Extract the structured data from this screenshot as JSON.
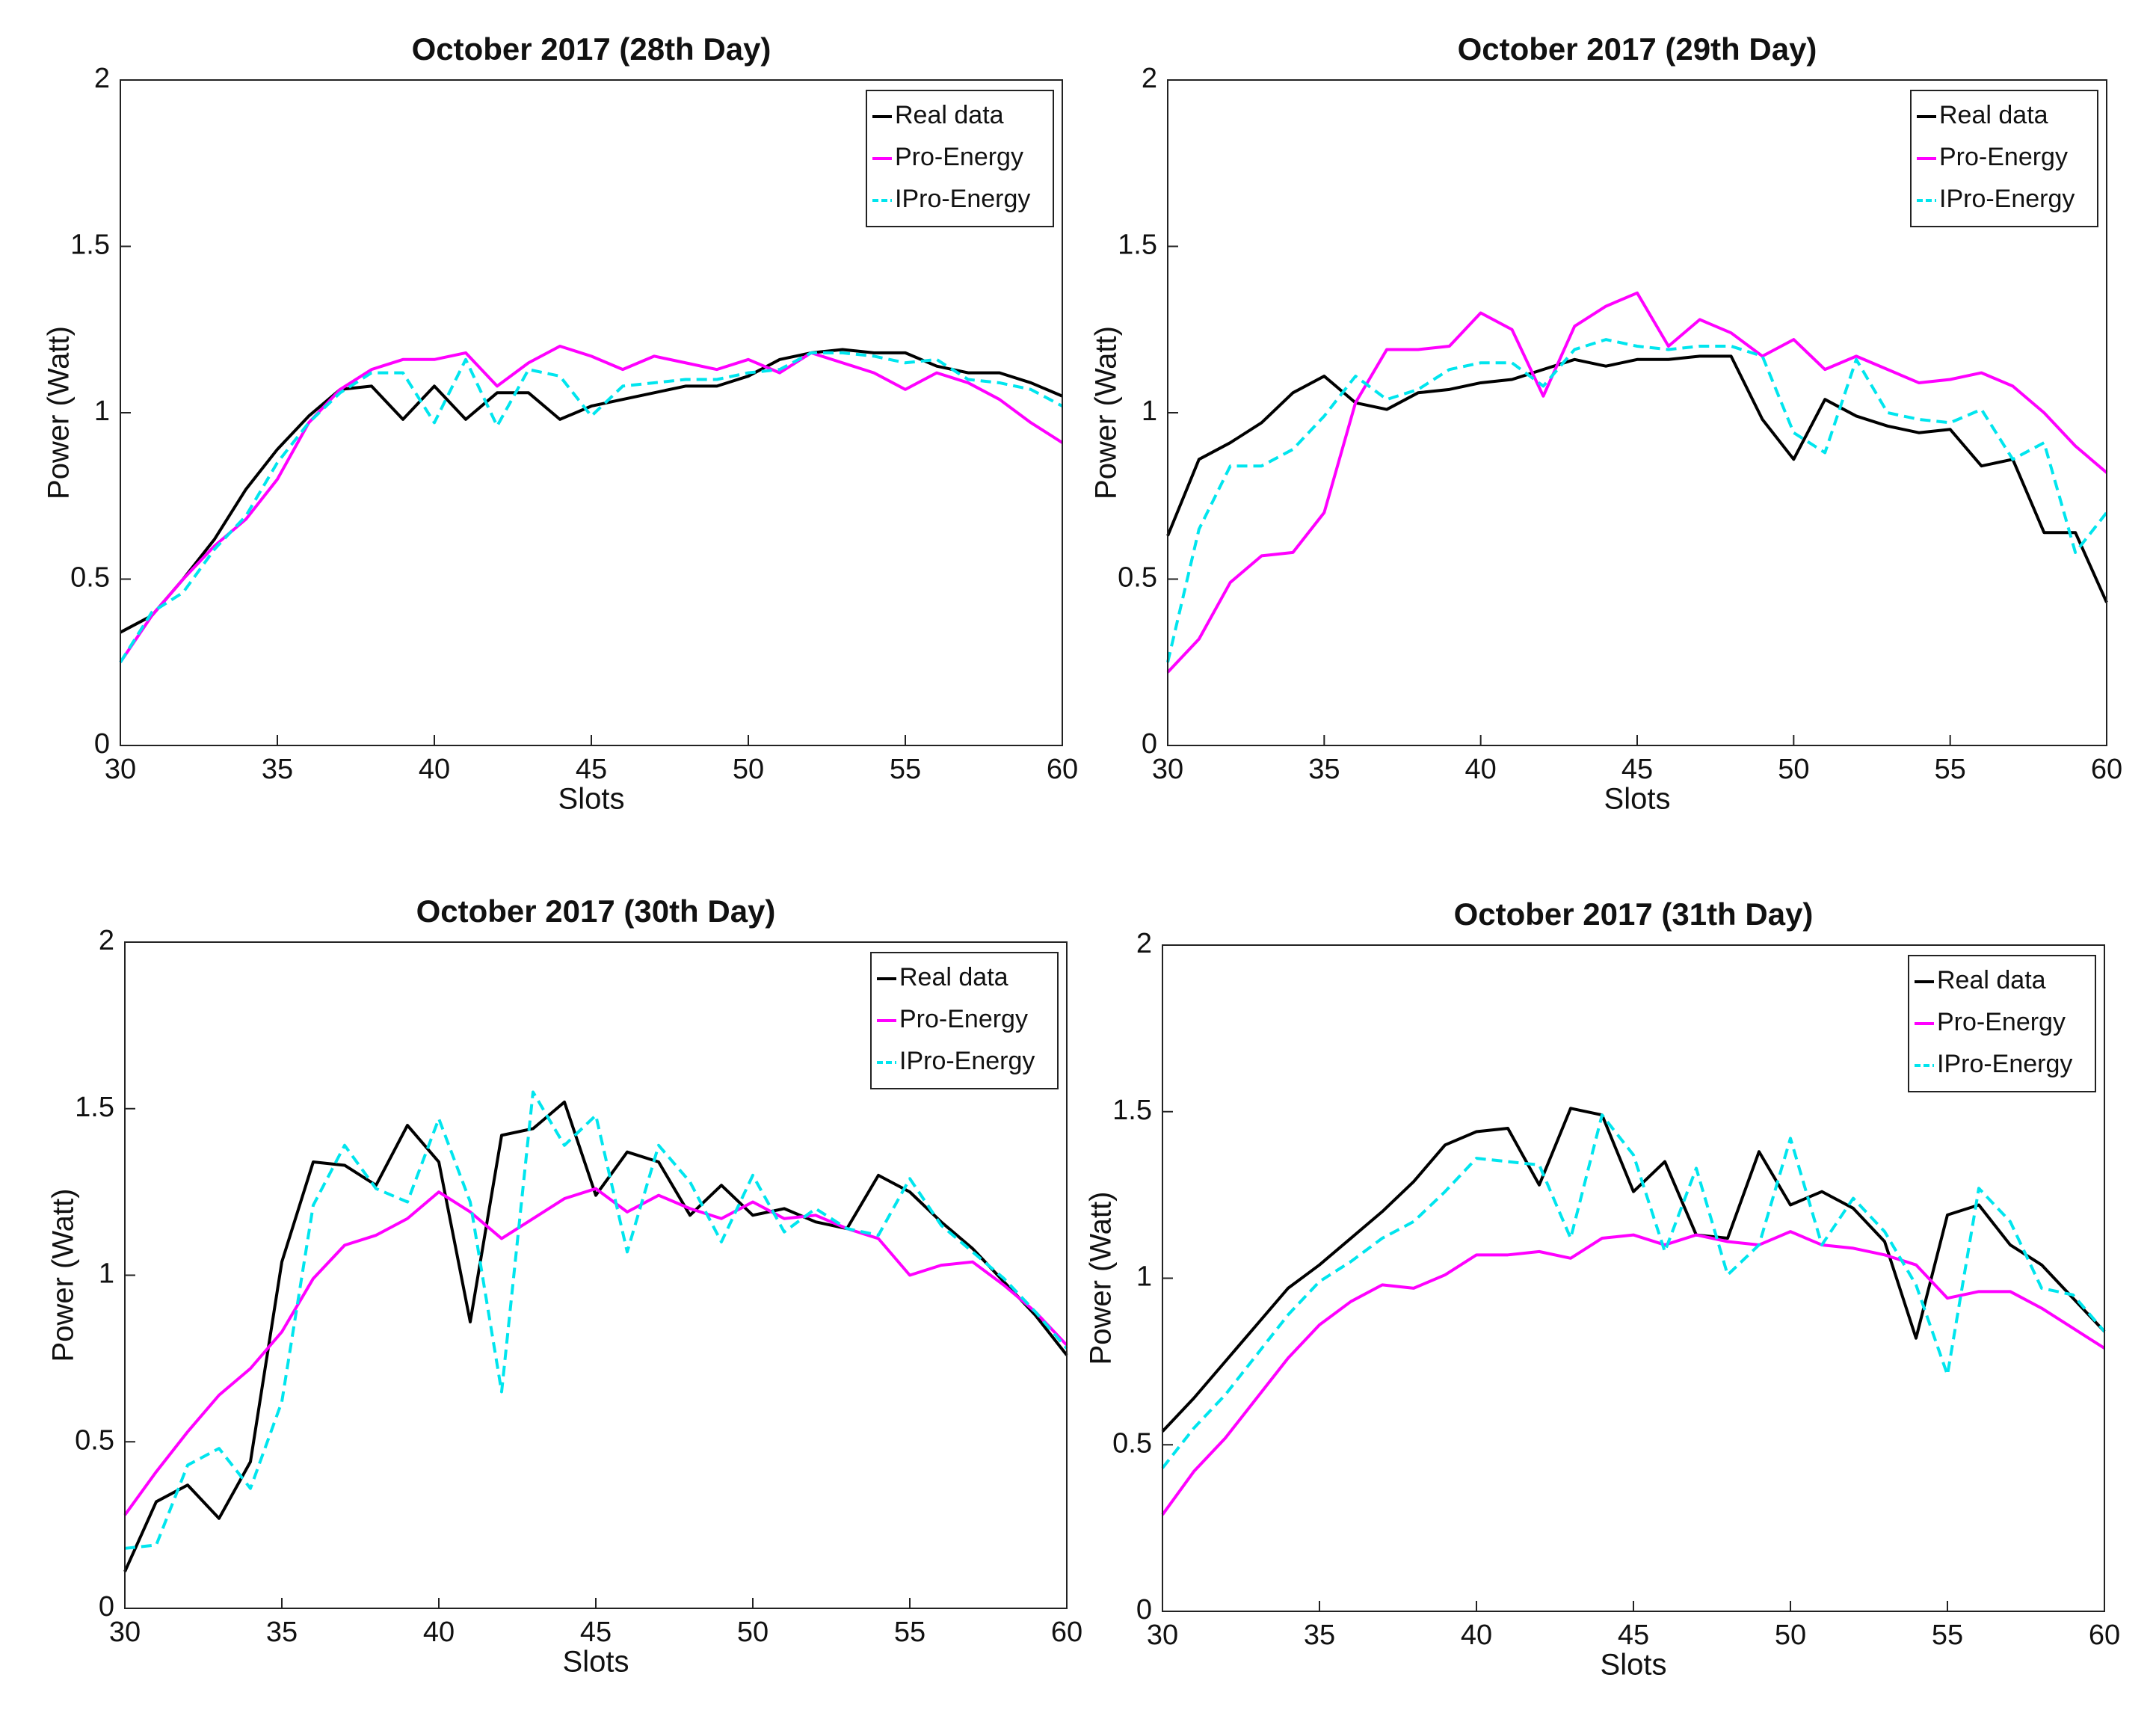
{
  "chart_data": [
    {
      "type": "line",
      "title": "October 2017 (28th Day)",
      "xlabel": "Slots",
      "ylabel": "Power (Watt)",
      "x": [
        30,
        31,
        32,
        33,
        34,
        35,
        36,
        37,
        38,
        39,
        40,
        41,
        42,
        43,
        44,
        45,
        46,
        47,
        48,
        49,
        50,
        51,
        52,
        53,
        54,
        55,
        56,
        57,
        58,
        59,
        60
      ],
      "xlim": [
        30,
        60
      ],
      "xticks": [
        30,
        35,
        40,
        45,
        50,
        55,
        60
      ],
      "ylim": [
        0,
        2
      ],
      "yticks": [
        0,
        0.5,
        1,
        1.5,
        2
      ],
      "grid": false,
      "legend": "upper right",
      "series": [
        {
          "name": "Real data",
          "color": "#000000",
          "linestyle": "solid",
          "values": [
            0.34,
            0.39,
            0.5,
            0.62,
            0.77,
            0.89,
            0.99,
            1.07,
            1.08,
            0.98,
            1.08,
            0.98,
            1.06,
            1.06,
            0.98,
            1.02,
            1.04,
            1.06,
            1.08,
            1.08,
            1.11,
            1.16,
            1.18,
            1.19,
            1.18,
            1.18,
            1.14,
            1.12,
            1.12,
            1.09,
            1.05
          ]
        },
        {
          "name": "Pro-Energy",
          "color": "#ff00ff",
          "linestyle": "solid",
          "values": [
            0.25,
            0.39,
            0.5,
            0.6,
            0.68,
            0.8,
            0.97,
            1.07,
            1.13,
            1.16,
            1.16,
            1.18,
            1.08,
            1.15,
            1.2,
            1.17,
            1.13,
            1.17,
            1.15,
            1.13,
            1.16,
            1.12,
            1.18,
            1.15,
            1.12,
            1.07,
            1.12,
            1.09,
            1.04,
            0.97,
            0.91
          ]
        },
        {
          "name": "IPro-Energy",
          "color": "#00e5ee",
          "linestyle": "dashed",
          "values": [
            0.25,
            0.4,
            0.46,
            0.59,
            0.69,
            0.85,
            0.97,
            1.06,
            1.12,
            1.12,
            0.97,
            1.16,
            0.96,
            1.13,
            1.11,
            0.99,
            1.08,
            1.09,
            1.1,
            1.1,
            1.12,
            1.13,
            1.18,
            1.18,
            1.17,
            1.15,
            1.16,
            1.1,
            1.09,
            1.07,
            1.02
          ]
        }
      ]
    },
    {
      "type": "line",
      "title": "October 2017 (29th Day)",
      "xlabel": "Slots",
      "ylabel": "Power (Watt)",
      "x": [
        30,
        31,
        32,
        33,
        34,
        35,
        36,
        37,
        38,
        39,
        40,
        41,
        42,
        43,
        44,
        45,
        46,
        47,
        48,
        49,
        50,
        51,
        52,
        53,
        54,
        55,
        56,
        57,
        58,
        59,
        60
      ],
      "xlim": [
        30,
        60
      ],
      "xticks": [
        30,
        35,
        40,
        45,
        50,
        55,
        60
      ],
      "ylim": [
        0,
        2
      ],
      "yticks": [
        0,
        0.5,
        1,
        1.5,
        2
      ],
      "grid": false,
      "legend": "upper right",
      "series": [
        {
          "name": "Real data",
          "color": "#000000",
          "linestyle": "solid",
          "values": [
            0.63,
            0.86,
            0.91,
            0.97,
            1.06,
            1.11,
            1.03,
            1.01,
            1.06,
            1.07,
            1.09,
            1.1,
            1.13,
            1.16,
            1.14,
            1.16,
            1.16,
            1.17,
            1.17,
            0.98,
            0.86,
            1.04,
            0.99,
            0.96,
            0.94,
            0.95,
            0.84,
            0.86,
            0.64,
            0.64,
            0.43
          ]
        },
        {
          "name": "Pro-Energy",
          "color": "#ff00ff",
          "linestyle": "solid",
          "values": [
            0.22,
            0.32,
            0.49,
            0.57,
            0.58,
            0.7,
            1.03,
            1.19,
            1.19,
            1.2,
            1.3,
            1.25,
            1.05,
            1.26,
            1.32,
            1.36,
            1.2,
            1.28,
            1.24,
            1.17,
            1.22,
            1.13,
            1.17,
            1.13,
            1.09,
            1.1,
            1.12,
            1.08,
            1.0,
            0.9,
            0.82
          ]
        },
        {
          "name": "IPro-Energy",
          "color": "#00e5ee",
          "linestyle": "dashed",
          "values": [
            0.25,
            0.65,
            0.84,
            0.84,
            0.89,
            0.99,
            1.11,
            1.04,
            1.07,
            1.13,
            1.15,
            1.15,
            1.08,
            1.19,
            1.22,
            1.2,
            1.19,
            1.2,
            1.2,
            1.17,
            0.94,
            0.88,
            1.16,
            1.0,
            0.98,
            0.97,
            1.01,
            0.86,
            0.91,
            0.58,
            0.7
          ]
        }
      ]
    },
    {
      "type": "line",
      "title": "October 2017 (30th Day)",
      "xlabel": "Slots",
      "ylabel": "Power (Watt)",
      "x": [
        30,
        31,
        32,
        33,
        34,
        35,
        36,
        37,
        38,
        39,
        40,
        41,
        42,
        43,
        44,
        45,
        46,
        47,
        48,
        49,
        50,
        51,
        52,
        53,
        54,
        55,
        56,
        57,
        58,
        59,
        60
      ],
      "xlim": [
        30,
        60
      ],
      "xticks": [
        30,
        35,
        40,
        45,
        50,
        55,
        60
      ],
      "ylim": [
        0,
        2
      ],
      "yticks": [
        0,
        0.5,
        1,
        1.5,
        2
      ],
      "grid": false,
      "legend": "upper right",
      "series": [
        {
          "name": "Real data",
          "color": "#000000",
          "linestyle": "solid",
          "values": [
            0.11,
            0.32,
            0.37,
            0.27,
            0.44,
            1.04,
            1.34,
            1.33,
            1.27,
            1.45,
            1.34,
            0.86,
            1.42,
            1.44,
            1.52,
            1.24,
            1.37,
            1.34,
            1.18,
            1.27,
            1.18,
            1.2,
            1.16,
            1.14,
            1.3,
            1.25,
            1.16,
            1.08,
            0.98,
            0.88,
            0.76
          ]
        },
        {
          "name": "Pro-Energy",
          "color": "#ff00ff",
          "linestyle": "solid",
          "values": [
            0.28,
            0.41,
            0.53,
            0.64,
            0.72,
            0.83,
            0.99,
            1.09,
            1.12,
            1.17,
            1.25,
            1.19,
            1.11,
            1.17,
            1.23,
            1.26,
            1.19,
            1.24,
            1.2,
            1.17,
            1.22,
            1.17,
            1.18,
            1.14,
            1.11,
            1.0,
            1.03,
            1.04,
            0.97,
            0.89,
            0.79
          ]
        },
        {
          "name": "IPro-Energy",
          "color": "#00e5ee",
          "linestyle": "dashed",
          "values": [
            0.18,
            0.19,
            0.43,
            0.48,
            0.36,
            0.62,
            1.21,
            1.39,
            1.26,
            1.22,
            1.47,
            1.22,
            0.65,
            1.55,
            1.39,
            1.48,
            1.07,
            1.39,
            1.28,
            1.1,
            1.3,
            1.13,
            1.2,
            1.14,
            1.12,
            1.29,
            1.15,
            1.07,
            0.99,
            0.89,
            0.78
          ]
        }
      ]
    },
    {
      "type": "line",
      "title": "October 2017 (31th Day)",
      "xlabel": "Slots",
      "ylabel": "Power (Watt)",
      "x": [
        30,
        31,
        32,
        33,
        34,
        35,
        36,
        37,
        38,
        39,
        40,
        41,
        42,
        43,
        44,
        45,
        46,
        47,
        48,
        49,
        50,
        51,
        52,
        53,
        54,
        55,
        56,
        57,
        58,
        59,
        60
      ],
      "xlim": [
        30,
        60
      ],
      "xticks": [
        30,
        35,
        40,
        45,
        50,
        55,
        60
      ],
      "ylim": [
        0,
        2
      ],
      "yticks": [
        0,
        0.5,
        1,
        1.5,
        2
      ],
      "grid": false,
      "legend": "upper right",
      "series": [
        {
          "name": "Real data",
          "color": "#000000",
          "linestyle": "solid",
          "values": [
            0.54,
            0.64,
            0.75,
            0.86,
            0.97,
            1.04,
            1.12,
            1.2,
            1.29,
            1.4,
            1.44,
            1.45,
            1.28,
            1.51,
            1.49,
            1.26,
            1.35,
            1.13,
            1.12,
            1.38,
            1.22,
            1.26,
            1.21,
            1.11,
            0.82,
            1.19,
            1.22,
            1.1,
            1.04,
            0.94,
            0.84
          ]
        },
        {
          "name": "Pro-Energy",
          "color": "#ff00ff",
          "linestyle": "solid",
          "values": [
            0.29,
            0.42,
            0.52,
            0.64,
            0.76,
            0.86,
            0.93,
            0.98,
            0.97,
            1.01,
            1.07,
            1.07,
            1.08,
            1.06,
            1.12,
            1.13,
            1.1,
            1.13,
            1.11,
            1.1,
            1.14,
            1.1,
            1.09,
            1.07,
            1.04,
            0.94,
            0.96,
            0.96,
            0.91,
            0.85,
            0.79
          ]
        },
        {
          "name": "IPro-Energy",
          "color": "#00e5ee",
          "linestyle": "dashed",
          "values": [
            0.43,
            0.55,
            0.65,
            0.77,
            0.89,
            0.99,
            1.05,
            1.12,
            1.17,
            1.26,
            1.36,
            1.35,
            1.34,
            1.12,
            1.49,
            1.37,
            1.08,
            1.33,
            1.01,
            1.1,
            1.42,
            1.1,
            1.24,
            1.14,
            0.98,
            0.71,
            1.27,
            1.17,
            0.97,
            0.95,
            0.84
          ]
        }
      ]
    }
  ]
}
